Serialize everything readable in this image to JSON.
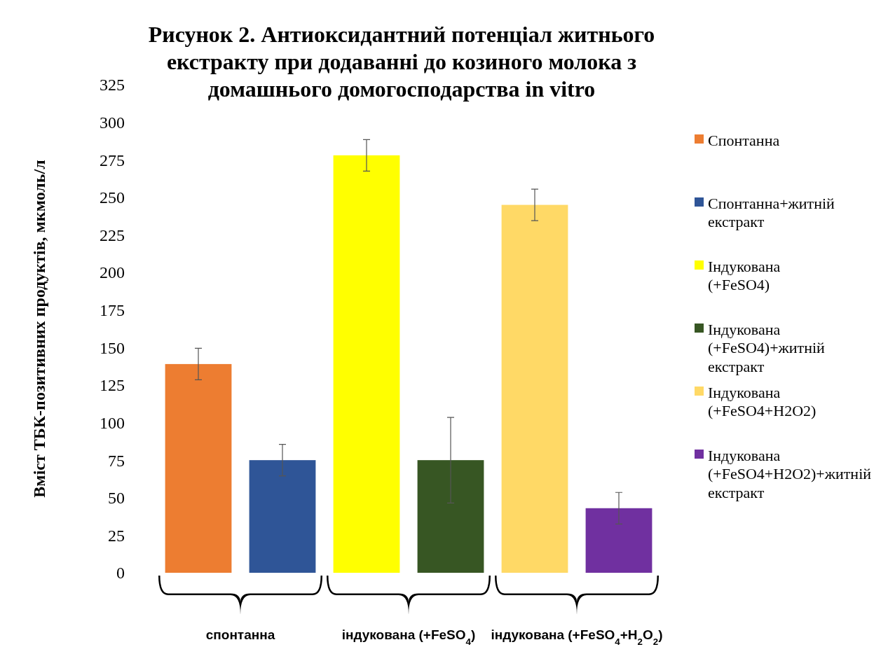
{
  "chart_data": {
    "type": "bar",
    "stacked": true,
    "title": "Рисунок 2. Антиоксидантний потенціал житнього екстракту при додаванні до козиного молока з домашнього домогосподарства in vitro",
    "ylabel": "Вміст ТБК-позитивних продуктів, мкмоль/л",
    "categories": [
      null,
      null,
      null,
      null,
      null,
      null
    ],
    "ylim": [
      0,
      325
    ],
    "yticks": [
      0,
      25,
      50,
      75,
      100,
      125,
      150,
      175,
      200,
      225,
      250,
      275,
      300,
      325
    ],
    "grid": false,
    "legend": "right",
    "annotations": [
      "спонтанна",
      "індукована (+FeSO$_{4}$)",
      "індукована (+FeSO$_{4}$+H$_{2}$O$_{2}$)"
    ],
    "series": [
      {
        "name": "Спонтанна",
        "color": "#ed7d31",
        "values": [
          139,
          null,
          null,
          null,
          null,
          null
        ],
        "errors": [
          10.5,
          null,
          null,
          null,
          null,
          null
        ]
      },
      {
        "name": "Спонтанна+житній екстракт",
        "color": "#2f5597",
        "values": [
          null,
          75,
          null,
          null,
          null,
          null
        ],
        "errors": [
          null,
          10.5,
          null,
          null,
          null,
          null
        ]
      },
      {
        "name": "Індукована (+FeSO4)",
        "color": "#ffff00",
        "values": [
          null,
          null,
          278,
          null,
          null,
          null
        ],
        "errors": [
          null,
          null,
          10.5,
          null,
          null,
          null
        ]
      },
      {
        "name": "Індукована (+FeSO4)+житній екстракт",
        "color": "#375623",
        "values": [
          null,
          null,
          null,
          75,
          null,
          null
        ],
        "errors": [
          null,
          null,
          null,
          28.5,
          null,
          null
        ]
      },
      {
        "name": "Індукована (+FeSO4+H2O2)",
        "color": "#ffd966",
        "values": [
          null,
          null,
          null,
          null,
          245,
          null
        ],
        "errors": [
          null,
          null,
          null,
          null,
          10.5,
          null
        ]
      },
      {
        "name": "Індукована (+FeSO4+H2O2)+житній екстракт",
        "color": "#7030a0",
        "values": [
          null,
          null,
          null,
          null,
          null,
          43
        ],
        "errors": [
          null,
          null,
          null,
          null,
          null,
          10.5
        ]
      }
    ]
  }
}
